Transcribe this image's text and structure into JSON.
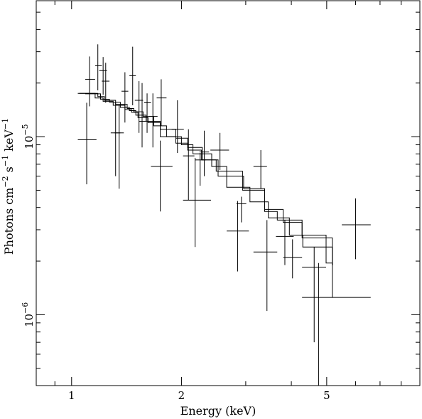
{
  "chart_data": {
    "type": "scatter",
    "title": "",
    "xlabel": "Energy (keV)",
    "ylabel_parts": [
      "Photons cm",
      "−2",
      " s",
      "−1",
      " keV",
      "−1"
    ],
    "x_scale": "log",
    "y_scale": "log",
    "xlim": [
      0.8,
      9.0
    ],
    "ylim": [
      4e-07,
      5.8e-05
    ],
    "x_tick_labels": [
      {
        "value": 1,
        "label": "1"
      },
      {
        "value": 2,
        "label": "2"
      },
      {
        "value": 5,
        "label": "5"
      }
    ],
    "y_tick_labels": [
      {
        "value": 1e-06,
        "base": "10",
        "exp": "−6"
      },
      {
        "value": 1e-05,
        "base": "10",
        "exp": "−5"
      }
    ],
    "x_minor_ticks": [
      0.9,
      3,
      4,
      6,
      7,
      8,
      9
    ],
    "y_minor_ticks": [
      5e-07,
      6e-07,
      7e-07,
      8e-07,
      9e-07,
      2e-06,
      3e-06,
      4e-06,
      5e-06,
      6e-06,
      7e-06,
      8e-06,
      9e-06,
      2e-05,
      3e-05,
      4e-05,
      5e-05
    ],
    "data_points": [
      {
        "x": 1.1,
        "xlo": 1.04,
        "xhi": 1.17,
        "y": 9.6e-06,
        "ylo": 5.4e-06,
        "yhi": 1.55e-05
      },
      {
        "x": 1.12,
        "xlo": 1.09,
        "xhi": 1.16,
        "y": 2.1e-05,
        "ylo": 1.48e-05,
        "yhi": 2.82e-05
      },
      {
        "x": 1.18,
        "xlo": 1.16,
        "xhi": 1.21,
        "y": 2.5e-05,
        "ylo": 1.82e-05,
        "yhi": 3.3e-05
      },
      {
        "x": 1.22,
        "xlo": 1.19,
        "xhi": 1.25,
        "y": 2.35e-05,
        "ylo": 1.72e-05,
        "yhi": 2.8e-05
      },
      {
        "x": 1.24,
        "xlo": 1.21,
        "xhi": 1.27,
        "y": 2.05e-05,
        "ylo": 1.55e-05,
        "yhi": 2.6e-05
      },
      {
        "x": 1.32,
        "xlo": 1.28,
        "xhi": 1.36,
        "y": 1.05e-05,
        "ylo": 6e-06,
        "yhi": 1.55e-05
      },
      {
        "x": 1.35,
        "xlo": 1.31,
        "xhi": 1.39,
        "y": 1.05e-05,
        "ylo": 5.1e-06,
        "yhi": 1.5e-05
      },
      {
        "x": 1.4,
        "xlo": 1.37,
        "xhi": 1.43,
        "y": 1.8e-05,
        "ylo": 1.2e-05,
        "yhi": 2.3e-05
      },
      {
        "x": 1.47,
        "xlo": 1.44,
        "xhi": 1.5,
        "y": 2.2e-05,
        "ylo": 1.5e-05,
        "yhi": 3.2e-05
      },
      {
        "x": 1.53,
        "xlo": 1.49,
        "xhi": 1.57,
        "y": 1.6e-05,
        "ylo": 1.05e-05,
        "yhi": 2.05e-05
      },
      {
        "x": 1.56,
        "xlo": 1.53,
        "xhi": 1.6,
        "y": 1.22e-05,
        "ylo": 8.7e-06,
        "yhi": 2e-05
      },
      {
        "x": 1.61,
        "xlo": 1.58,
        "xhi": 1.65,
        "y": 1.55e-05,
        "ylo": 1.05e-05,
        "yhi": 1.75e-05
      },
      {
        "x": 1.67,
        "xlo": 1.63,
        "xhi": 1.72,
        "y": 1.3e-05,
        "ylo": 8.7e-06,
        "yhi": 1.75e-05
      },
      {
        "x": 1.76,
        "xlo": 1.71,
        "xhi": 1.82,
        "y": 1.65e-05,
        "ylo": 1.15e-05,
        "yhi": 2.1e-05
      },
      {
        "x": 1.75,
        "xlo": 1.65,
        "xhi": 1.89,
        "y": 6.8e-06,
        "ylo": 3.8e-06,
        "yhi": 9.5e-06
      },
      {
        "x": 1.95,
        "xlo": 1.88,
        "xhi": 2.03,
        "y": 1.1e-05,
        "ylo": 8.1e-06,
        "yhi": 1.6e-05
      },
      {
        "x": 2.09,
        "xlo": 2.02,
        "xhi": 2.17,
        "y": 7.8e-06,
        "ylo": 4.4e-06,
        "yhi": 1.1e-05
      },
      {
        "x": 2.18,
        "xlo": 2.02,
        "xhi": 2.41,
        "y": 4.4e-06,
        "ylo": 2.4e-06,
        "yhi": 7.6e-06
      },
      {
        "x": 2.25,
        "xlo": 2.18,
        "xhi": 2.33,
        "y": 7.4e-06,
        "ylo": 5.3e-06,
        "yhi": 8.1e-06
      },
      {
        "x": 2.31,
        "xlo": 2.24,
        "xhi": 2.38,
        "y": 8.2e-06,
        "ylo": 6e-06,
        "yhi": 1.08e-05
      },
      {
        "x": 2.55,
        "xlo": 2.4,
        "xhi": 2.7,
        "y": 8.4e-06,
        "ylo": 6.5e-06,
        "yhi": 1.05e-05
      },
      {
        "x": 2.85,
        "xlo": 2.66,
        "xhi": 3.06,
        "y": 2.95e-06,
        "ylo": 1.75e-06,
        "yhi": 4.35e-06
      },
      {
        "x": 2.92,
        "xlo": 2.83,
        "xhi": 3.01,
        "y": 4.2e-06,
        "ylo": 3.3e-06,
        "yhi": 4.6e-06
      },
      {
        "x": 3.3,
        "xlo": 3.15,
        "xhi": 3.43,
        "y": 6.8e-06,
        "ylo": 5.1e-06,
        "yhi": 8.4e-06
      },
      {
        "x": 3.43,
        "xlo": 3.15,
        "xhi": 3.66,
        "y": 2.25e-06,
        "ylo": 1.05e-06,
        "yhi": 3.4e-06
      },
      {
        "x": 3.84,
        "xlo": 3.63,
        "xhi": 4.06,
        "y": 2.75e-06,
        "ylo": 1.9e-06,
        "yhi": 3.4e-06
      },
      {
        "x": 4.03,
        "xlo": 3.8,
        "xhi": 4.28,
        "y": 2.1e-06,
        "ylo": 1.6e-06,
        "yhi": 2.65e-06
      },
      {
        "x": 4.62,
        "xlo": 4.28,
        "xhi": 4.98,
        "y": 1.85e-06,
        "ylo": 7e-07,
        "yhi": 2.4e-06
      },
      {
        "x": 4.75,
        "xlo": 4.28,
        "xhi": 5.18,
        "y": 1.25e-06,
        "ylo": 4e-07,
        "yhi": 1.95e-06
      },
      {
        "x": 6.0,
        "xlo": 5.5,
        "xhi": 6.6,
        "y": 3.2e-06,
        "ylo": 2.05e-06,
        "yhi": 4.5e-06
      }
    ],
    "model_curves": [
      {
        "steps": [
          [
            1.04,
            1.75e-05
          ],
          [
            1.16,
            1.65e-05
          ],
          [
            1.22,
            1.58e-05
          ],
          [
            1.3,
            1.5e-05
          ],
          [
            1.4,
            1.42e-05
          ],
          [
            1.46,
            1.37e-05
          ],
          [
            1.52,
            1.28e-05
          ],
          [
            1.62,
            1.2e-05
          ],
          [
            1.75,
            1e-05
          ],
          [
            1.93,
            9.2e-06
          ],
          [
            2.08,
            8.4e-06
          ],
          [
            2.27,
            7.4e-06
          ],
          [
            2.49,
            6.4e-06
          ],
          [
            2.94,
            5e-06
          ],
          [
            3.38,
            3.8e-06
          ],
          [
            3.66,
            3.4e-06
          ],
          [
            4.28,
            2.8e-06
          ],
          [
            4.98,
            1.95e-06
          ],
          [
            5.18,
            1.9e-06
          ]
        ]
      },
      {
        "steps": [
          [
            1.05,
            1.75e-05
          ],
          [
            1.18,
            1.68e-05
          ],
          [
            1.23,
            1.6e-05
          ],
          [
            1.32,
            1.52e-05
          ],
          [
            1.42,
            1.44e-05
          ],
          [
            1.48,
            1.38e-05
          ],
          [
            1.57,
            1.3e-05
          ],
          [
            1.68,
            1.15e-05
          ],
          [
            1.82,
            1e-05
          ],
          [
            2.0,
            9e-06
          ],
          [
            2.15,
            8e-06
          ],
          [
            2.42,
            6.8e-06
          ],
          [
            2.66,
            5.2e-06
          ],
          [
            3.08,
            4.3e-06
          ],
          [
            3.46,
            3.5e-06
          ],
          [
            3.95,
            2.8e-06
          ],
          [
            4.3,
            2.4e-06
          ],
          [
            5.18,
            1.9e-06
          ]
        ]
      },
      {
        "steps": [
          [
            1.09,
            1.74e-05
          ],
          [
            1.2,
            1.62e-05
          ],
          [
            1.27,
            1.56e-05
          ],
          [
            1.36,
            1.46e-05
          ],
          [
            1.44,
            1.4e-05
          ],
          [
            1.5,
            1.32e-05
          ],
          [
            1.6,
            1.22e-05
          ],
          [
            1.75,
            1.1e-05
          ],
          [
            1.93,
            9.8e-06
          ],
          [
            2.08,
            8.7e-06
          ],
          [
            2.28,
            7.4e-06
          ],
          [
            2.52,
            6e-06
          ],
          [
            2.96,
            5.1e-06
          ],
          [
            3.38,
            3.9e-06
          ],
          [
            3.8,
            3.3e-06
          ],
          [
            4.28,
            2.7e-06
          ],
          [
            5.18,
            1.25e-06
          ],
          [
            6.6,
            1.25e-06
          ]
        ]
      }
    ]
  }
}
